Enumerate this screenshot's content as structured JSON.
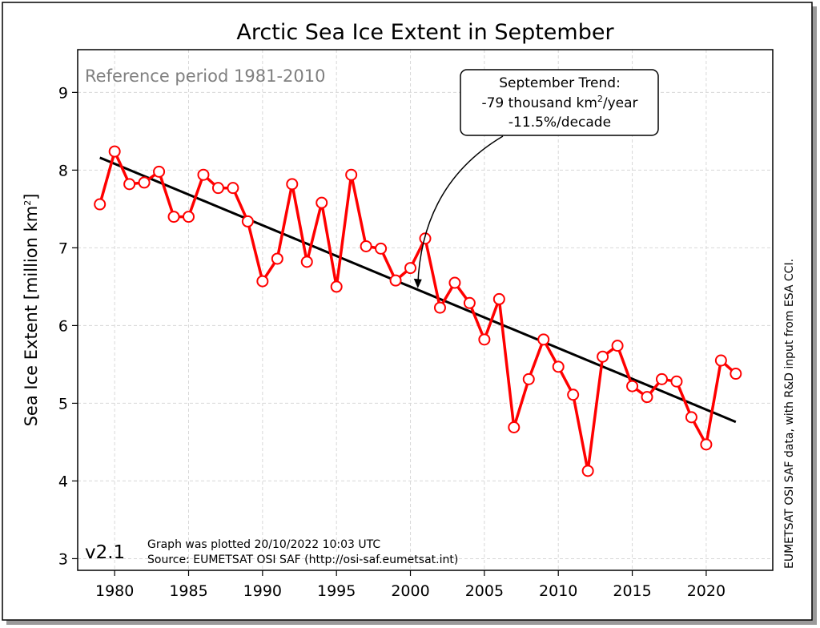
{
  "chart_data": {
    "type": "line",
    "title": "Arctic Sea Ice Extent in September",
    "ylabel": "Sea Ice Extent [million km",
    "ylabel_sup": "2",
    "ylabel_end": "]",
    "xlim": [
      1977.5,
      2024.5
    ],
    "ylim": [
      2.85,
      9.55
    ],
    "xticks": [
      1980,
      1985,
      1990,
      1995,
      2000,
      2005,
      2010,
      2015,
      2020
    ],
    "yticks": [
      3,
      4,
      5,
      6,
      7,
      8,
      9
    ],
    "grid": true,
    "series": [
      {
        "color": "#ff0000",
        "x": [
          1979,
          1980,
          1981,
          1982,
          1983,
          1984,
          1985,
          1986,
          1987,
          1988,
          1989,
          1990,
          1991,
          1992,
          1993,
          1994,
          1995,
          1996,
          1997,
          1998,
          1999,
          2000,
          2001,
          2002,
          2003,
          2004,
          2005,
          2006,
          2007,
          2008,
          2009,
          2010,
          2011,
          2012,
          2013,
          2014,
          2015,
          2016,
          2017,
          2018,
          2019,
          2020,
          2021,
          2022
        ],
        "y": [
          7.56,
          8.24,
          7.82,
          7.84,
          7.98,
          7.4,
          7.4,
          7.94,
          7.77,
          7.77,
          7.34,
          6.57,
          6.86,
          7.82,
          6.82,
          7.58,
          6.5,
          7.94,
          7.02,
          6.99,
          6.58,
          6.74,
          7.12,
          6.23,
          6.55,
          6.29,
          5.82,
          6.34,
          4.69,
          5.31,
          5.82,
          5.47,
          5.11,
          4.13,
          5.6,
          5.74,
          5.22,
          5.08,
          5.31,
          5.28,
          4.82,
          4.47,
          5.55,
          5.38
        ]
      }
    ],
    "trend": {
      "color": "#000000",
      "x": [
        1979,
        2022
      ],
      "y": [
        8.16,
        4.76
      ]
    },
    "annotations": {
      "reference_period": "Reference period 1981-2010",
      "trend_box": {
        "line1": "September Trend:",
        "line2_pre": "-79 thousand km",
        "line2_sup": "2",
        "line2_post": "/year",
        "line3": "-11.5%/decade",
        "arrow_target": [
          2000.5,
          6.48
        ]
      },
      "version": "v2.1",
      "plotted": "Graph was plotted 20/10/2022 10:03 UTC",
      "source": "Source: EUMETSAT OSI SAF (http://osi-saf.eumetsat.int)",
      "right_side_note": "EUMETSAT OSI SAF data, with R&D input from ESA CCI."
    }
  }
}
